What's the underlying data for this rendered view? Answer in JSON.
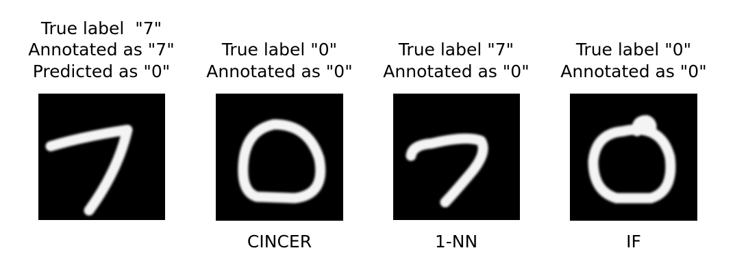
{
  "panels": [
    {
      "title_lines": [
        "True label  \"7\"",
        "Annotated as \"7\"",
        "Predicted as \"0\""
      ]
    },
    {
      "title_lines": [
        "True label \"0\"",
        "Annotated as \"0\""
      ],
      "caption": "CINCER"
    },
    {
      "title_lines": [
        "True label \"7\"",
        "Annotated as \"0\""
      ],
      "caption": "1-NN"
    },
    {
      "title_lines": [
        "True label \"0\"",
        "Annotated as \"0\""
      ],
      "caption": "IF"
    }
  ]
}
